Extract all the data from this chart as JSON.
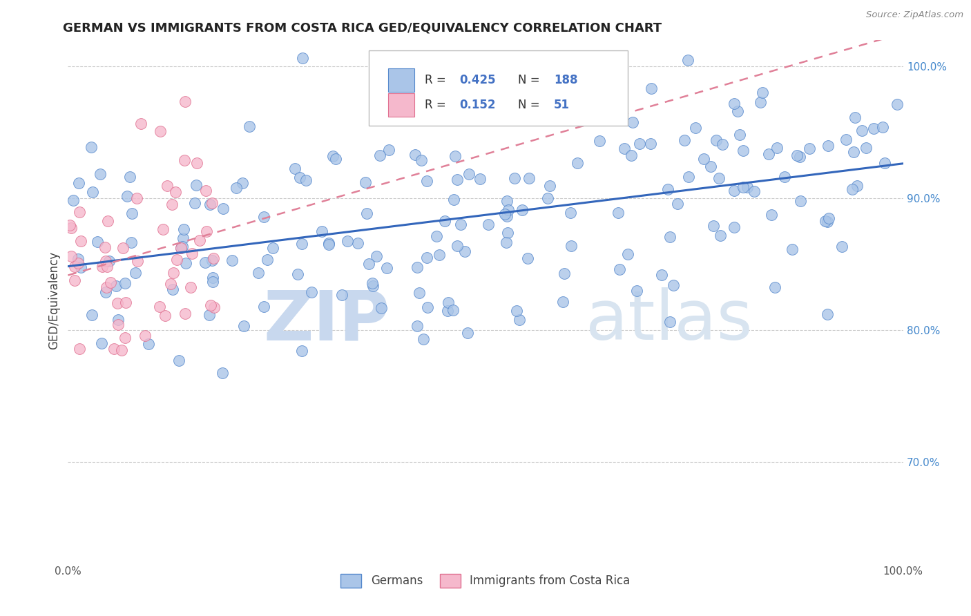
{
  "title": "GERMAN VS IMMIGRANTS FROM COSTA RICA GED/EQUIVALENCY CORRELATION CHART",
  "source": "Source: ZipAtlas.com",
  "ylabel": "GED/Equivalency",
  "right_ytick_vals": [
    0.7,
    0.8,
    0.9,
    1.0
  ],
  "right_ytick_labels": [
    "70.0%",
    "80.0%",
    "90.0%",
    "100.0%"
  ],
  "watermark_zip": "ZIP",
  "watermark_atlas": "atlas",
  "legend_german_R": "0.425",
  "legend_german_N": "188",
  "legend_cr_R": "0.152",
  "legend_cr_N": "51",
  "german_face_color": "#aac5e8",
  "german_edge_color": "#5588cc",
  "cr_face_color": "#f5b8cc",
  "cr_edge_color": "#e07090",
  "german_line_color": "#3366bb",
  "cr_line_color": "#e08098",
  "xlim": [
    0.0,
    1.0
  ],
  "ylim": [
    0.625,
    1.02
  ],
  "xtick_labels": [
    "0.0%",
    "100.0%"
  ],
  "grid_color": "#cccccc",
  "legend_R_color": "#4472c4",
  "legend_N_color": "#4472c4",
  "legend_text_color": "#333333"
}
